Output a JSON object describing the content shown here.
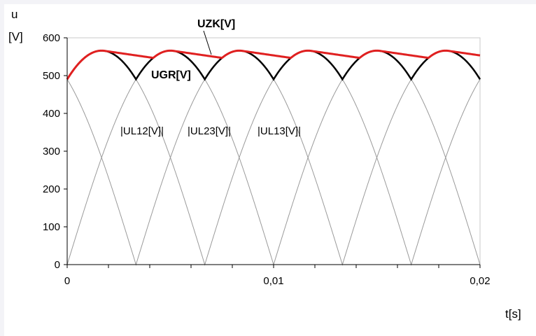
{
  "chart_data": {
    "type": "line",
    "ylabel": "u",
    "ylabel_unit": "[V]",
    "xlabel": "t[s]",
    "xlim": [
      0,
      0.02
    ],
    "ylim": [
      0,
      600
    ],
    "x_tick_labels": [
      "0",
      "0,01",
      "0,02"
    ],
    "y_tick_labels": [
      "0",
      "100",
      "200",
      "300",
      "400",
      "500",
      "600"
    ],
    "grid": false,
    "series": [
      {
        "name": "|UL12[V]|",
        "color": "#9a9a9a",
        "function": "abs_sine",
        "amplitude": 566,
        "frequency_hz": 50,
        "phase_deg": 60
      },
      {
        "name": "|UL23[V]|",
        "color": "#9a9a9a",
        "function": "abs_sine",
        "amplitude": 566,
        "frequency_hz": 50,
        "phase_deg": 0
      },
      {
        "name": "|UL13[V]|",
        "color": "#9a9a9a",
        "function": "abs_sine",
        "amplitude": 566,
        "frequency_hz": 50,
        "phase_deg": -60
      },
      {
        "name": "UGR[V]",
        "color": "#000000",
        "function": "max_of_abs_line_voltages"
      },
      {
        "name": "UZK[V]",
        "color": "#e02020",
        "function": "dc_link_ripple",
        "peak": 566,
        "ripple_min": 545
      }
    ]
  }
}
